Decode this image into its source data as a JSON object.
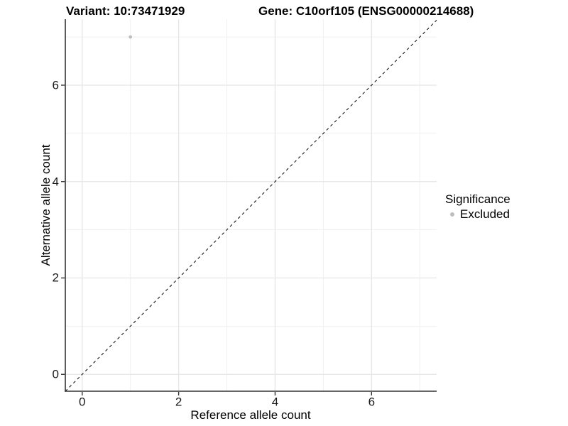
{
  "chart_data": {
    "type": "scatter",
    "title_left": "Variant: 10:73471929",
    "title_right": "Gene: C10orf105 (ENSG00000214688)",
    "xlabel": "Reference allele count",
    "ylabel": "Alternative allele count",
    "xlim": [
      -0.35,
      7.35
    ],
    "ylim": [
      -0.35,
      7.37
    ],
    "x_ticks": [
      0,
      2,
      4,
      6
    ],
    "y_ticks": [
      0,
      2,
      4,
      6
    ],
    "x_minor_ticks": [
      1,
      3,
      5,
      7
    ],
    "y_minor_ticks": [
      1,
      3,
      5,
      7
    ],
    "grid": true,
    "series": [
      {
        "name": "Excluded",
        "color": "#bebebe",
        "points": [
          {
            "x": 1,
            "y": 7
          }
        ]
      }
    ],
    "reference_line": {
      "type": "identity",
      "slope": 1,
      "intercept": 0,
      "style": "dashed",
      "color": "#000000"
    },
    "legend": {
      "title": "Significance",
      "position": "right",
      "items": [
        {
          "label": "Excluded",
          "color": "#bebebe"
        }
      ]
    },
    "colors": {
      "background": "#ffffff",
      "grid_major": "#e5e5e5",
      "grid_minor": "#f0f0f0",
      "axis_line": "#333333",
      "tick_mark": "#333333",
      "text": "#000000"
    }
  }
}
